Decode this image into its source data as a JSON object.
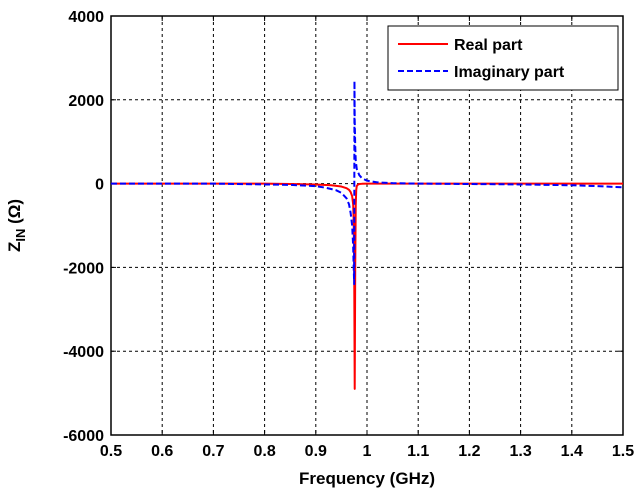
{
  "chart_data": {
    "type": "line",
    "xlabel": "Frequency (GHz)",
    "ylabel": "Z_IN (Ω)",
    "ylabel_parts": {
      "main": "Z",
      "sub": "IN",
      "unit": " (Ω)"
    },
    "xlim": [
      0.5,
      1.5
    ],
    "ylim": [
      -6000,
      4000
    ],
    "x_ticks": [
      0.5,
      0.6,
      0.7,
      0.8,
      0.9,
      1.0,
      1.1,
      1.2,
      1.3,
      1.4,
      1.5
    ],
    "x_tick_labels": [
      "0.5",
      "0.6",
      "0.7",
      "0.8",
      "0.9",
      "1",
      "1.1",
      "1.2",
      "1.3",
      "1.4",
      "1.5"
    ],
    "y_ticks": [
      -6000,
      -4000,
      -2000,
      0,
      2000,
      4000
    ],
    "y_tick_labels": [
      "-6000",
      "-4000",
      "-2000",
      "0",
      "2000",
      "4000"
    ],
    "grid": true,
    "legend_position": "top-right",
    "series": [
      {
        "name": "Real part",
        "color": "#ff0000",
        "style": "solid",
        "x": [
          0.5,
          0.6,
          0.7,
          0.8,
          0.85,
          0.9,
          0.93,
          0.95,
          0.96,
          0.965,
          0.968,
          0.971,
          0.973,
          0.974,
          0.975,
          0.976,
          0.977,
          0.978,
          0.979,
          0.98,
          0.982,
          0.985,
          0.99,
          1.0,
          1.02,
          1.05,
          1.1,
          1.2,
          1.3,
          1.4,
          1.5
        ],
        "y": [
          0,
          0,
          0,
          0,
          -10,
          -20,
          -40,
          -70,
          -110,
          -150,
          -200,
          -300,
          -500,
          -900,
          -2000,
          -4900,
          -2000,
          -500,
          -150,
          -60,
          -25,
          -10,
          -5,
          0,
          0,
          0,
          0,
          0,
          0,
          0,
          0
        ]
      },
      {
        "name": "Imaginary part",
        "color": "#0000ff",
        "style": "dashed",
        "x": [
          0.5,
          0.6,
          0.7,
          0.8,
          0.85,
          0.9,
          0.92,
          0.94,
          0.95,
          0.96,
          0.965,
          0.968,
          0.971,
          0.973,
          0.974,
          0.975,
          0.9755,
          0.976,
          0.977,
          0.978,
          0.98,
          0.985,
          0.99,
          1.0,
          1.02,
          1.05,
          1.1,
          1.2,
          1.3,
          1.4,
          1.45,
          1.5
        ],
        "y": [
          0,
          0,
          0,
          -20,
          -30,
          -60,
          -100,
          -160,
          -220,
          -350,
          -500,
          -700,
          -1000,
          -1500,
          -2000,
          -2400,
          2450,
          1500,
          900,
          550,
          350,
          200,
          130,
          70,
          30,
          10,
          0,
          -10,
          -20,
          -40,
          -60,
          -90
        ]
      }
    ]
  }
}
